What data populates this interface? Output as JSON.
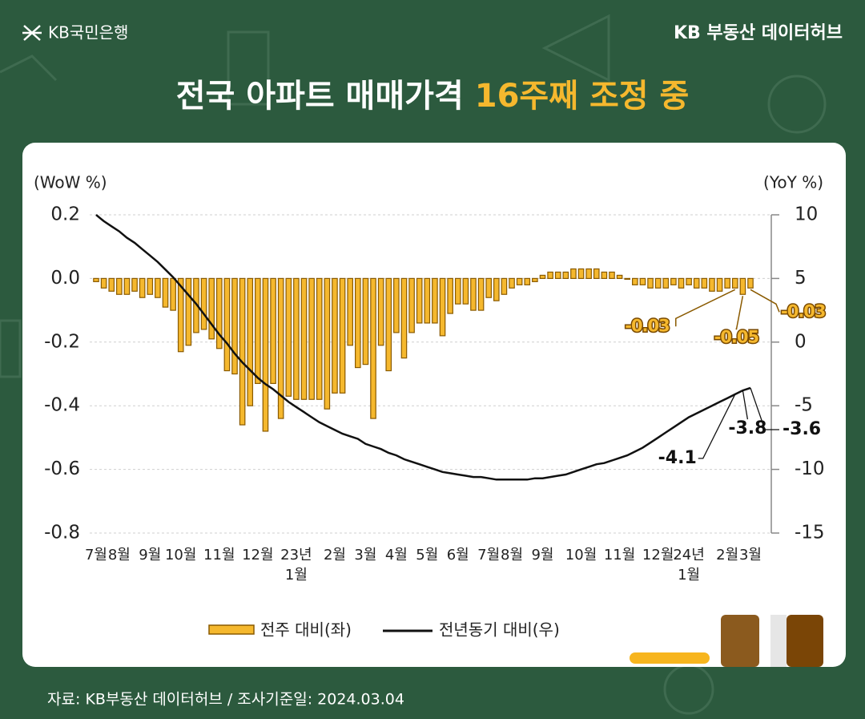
{
  "header": {
    "logo": "KB국민은행",
    "brand": "KB 부동산 데이터허브"
  },
  "chart_data": {
    "type": "bar-line",
    "title": [
      "전국 아파트 매매가격",
      "16주째 조정 중"
    ],
    "y_label": "(WoW %)",
    "y2_label": "(YoY %)",
    "ylim": [
      -0.8,
      0.2
    ],
    "yticks": [
      0.2,
      {
        "value": 0,
        "label": "0.0"
      },
      -0.2,
      -0.4,
      -0.6,
      -0.8
    ],
    "y2lim": [
      -15,
      10
    ],
    "y2ticks": [
      10,
      5,
      0,
      -5,
      -10,
      -15
    ],
    "grid": true,
    "categories": [
      "7월",
      null,
      null,
      "8월",
      null,
      null,
      null,
      "9월",
      null,
      null,
      null,
      "10월",
      null,
      null,
      null,
      null,
      "11월",
      null,
      null,
      null,
      null,
      "12월",
      null,
      null,
      null,
      null,
      "23년\n1월",
      null,
      null,
      null,
      null,
      "2월",
      null,
      null,
      null,
      "3월",
      null,
      null,
      null,
      "4월",
      null,
      null,
      null,
      "5월",
      null,
      null,
      null,
      "6월",
      null,
      null,
      null,
      "7월",
      null,
      null,
      "8월",
      null,
      null,
      null,
      "9월",
      null,
      null,
      null,
      null,
      "10월",
      null,
      null,
      null,
      null,
      "11월",
      null,
      null,
      null,
      null,
      "12월",
      null,
      null,
      null,
      "24년\n1월",
      null,
      null,
      null,
      null,
      "2월",
      null,
      null,
      "3월"
    ],
    "series": [
      {
        "name": "전주 대비(좌)",
        "color": "#f5b82e",
        "values": [
          -0.01,
          -0.03,
          -0.04,
          -0.05,
          -0.05,
          -0.04,
          -0.06,
          -0.05,
          -0.06,
          -0.09,
          -0.1,
          -0.23,
          -0.21,
          -0.17,
          -0.16,
          -0.19,
          -0.22,
          -0.29,
          -0.3,
          -0.46,
          -0.4,
          -0.33,
          -0.48,
          -0.33,
          -0.44,
          -0.37,
          -0.38,
          -0.38,
          -0.38,
          -0.38,
          -0.41,
          -0.36,
          -0.36,
          -0.21,
          -0.28,
          -0.27,
          -0.44,
          -0.21,
          -0.29,
          -0.17,
          -0.25,
          -0.17,
          -0.14,
          -0.14,
          -0.14,
          -0.18,
          -0.11,
          -0.08,
          -0.08,
          -0.1,
          -0.1,
          -0.06,
          -0.07,
          -0.05,
          -0.03,
          -0.02,
          -0.02,
          -0.01,
          0.01,
          0.02,
          0.02,
          0.02,
          0.03,
          0.03,
          0.03,
          0.03,
          0.02,
          0.02,
          0.01,
          0.0,
          -0.02,
          -0.02,
          -0.03,
          -0.03,
          -0.03,
          -0.02,
          -0.03,
          -0.02,
          -0.03,
          -0.03,
          -0.04,
          -0.04,
          -0.03,
          -0.03,
          -0.05,
          -0.03
        ]
      },
      {
        "name": "전년동기 대비(우)",
        "color": "#111111",
        "axis": "y2",
        "values": [
          10.0,
          9.5,
          9.1,
          8.7,
          8.2,
          7.8,
          7.3,
          6.8,
          6.3,
          5.7,
          5.1,
          4.4,
          3.7,
          3.0,
          2.2,
          1.4,
          0.6,
          -0.1,
          -0.9,
          -1.6,
          -2.2,
          -2.8,
          -3.3,
          -3.7,
          -4.2,
          -4.7,
          -5.1,
          -5.5,
          -5.9,
          -6.3,
          -6.6,
          -6.9,
          -7.2,
          -7.4,
          -7.6,
          -8.0,
          -8.2,
          -8.4,
          -8.7,
          -8.9,
          -9.2,
          -9.4,
          -9.6,
          -9.8,
          -10.0,
          -10.2,
          -10.3,
          -10.4,
          -10.5,
          -10.6,
          -10.6,
          -10.7,
          -10.8,
          -10.8,
          -10.8,
          -10.8,
          -10.8,
          -10.7,
          -10.7,
          -10.6,
          -10.5,
          -10.4,
          -10.2,
          -10.0,
          -9.8,
          -9.6,
          -9.5,
          -9.3,
          -9.1,
          -8.9,
          -8.6,
          -8.3,
          -7.9,
          -7.5,
          -7.1,
          -6.7,
          -6.3,
          -5.9,
          -5.6,
          -5.3,
          -5.0,
          -4.7,
          -4.4,
          -4.1,
          -3.8,
          -3.6
        ]
      }
    ]
  },
  "footer": {
    "source": "자료: KB부동산 데이터허브 / 조사기준일: 2024.03.04"
  }
}
